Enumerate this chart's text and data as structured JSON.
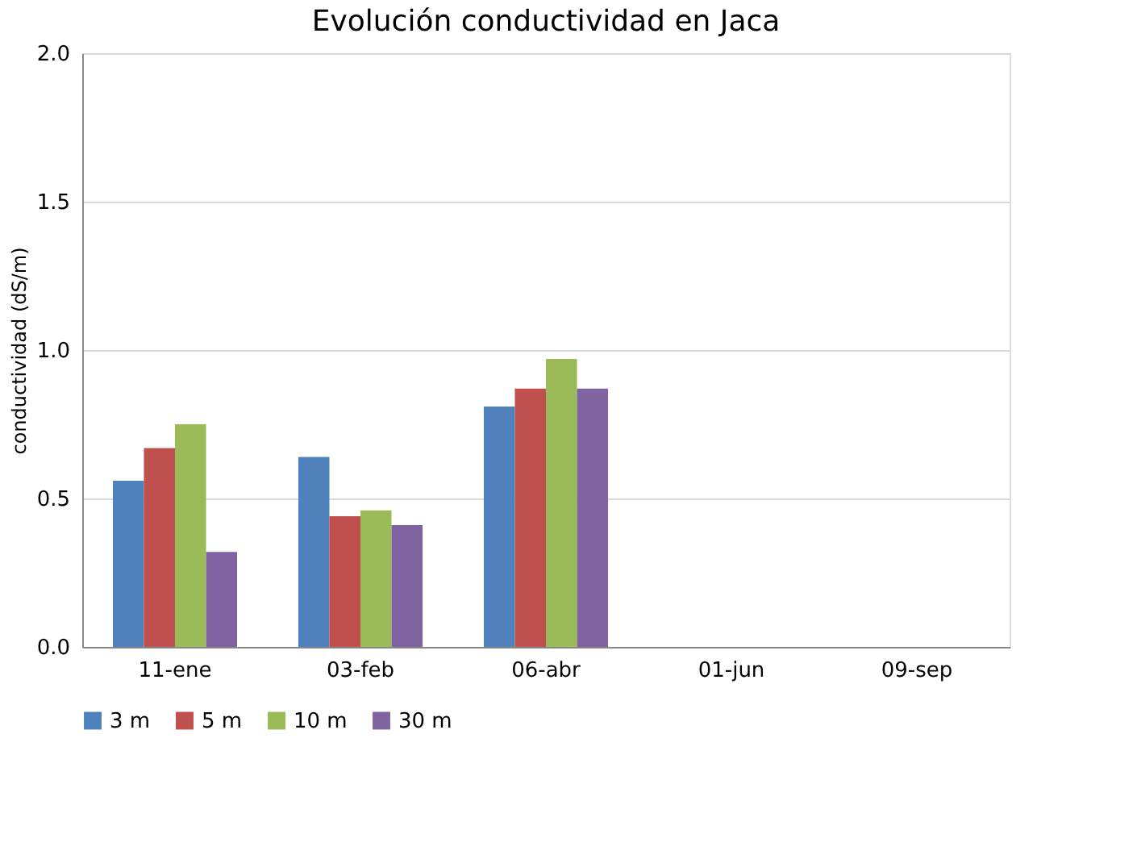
{
  "chart_data": {
    "type": "bar",
    "title": "Evolución conductividad en Jaca",
    "ylabel": "conductividad (dS/m)",
    "categories": [
      "11-ene",
      "03-feb",
      "06-abr",
      "01-jun",
      "09-sep"
    ],
    "series": [
      {
        "name": "3 m",
        "color": "#4f81bd",
        "values": [
          0.56,
          0.64,
          0.81,
          null,
          null
        ]
      },
      {
        "name": "5 m",
        "color": "#c0504d",
        "values": [
          0.67,
          0.44,
          0.87,
          null,
          null
        ]
      },
      {
        "name": "10 m",
        "color": "#9bbb59",
        "values": [
          0.75,
          0.46,
          0.97,
          null,
          null
        ]
      },
      {
        "name": "30 m",
        "color": "#8064a2",
        "values": [
          0.32,
          0.41,
          0.87,
          null,
          null
        ]
      }
    ],
    "ylim": [
      0,
      2
    ],
    "yticks": [
      {
        "value": 0,
        "label": "0.0"
      },
      {
        "value": 0.5,
        "label": "0.5"
      },
      {
        "value": 1,
        "label": "1.0"
      },
      {
        "value": 1.5,
        "label": "1.5"
      },
      {
        "value": 2,
        "label": "2.0"
      }
    ],
    "grid": "y",
    "legend": "bottom"
  }
}
